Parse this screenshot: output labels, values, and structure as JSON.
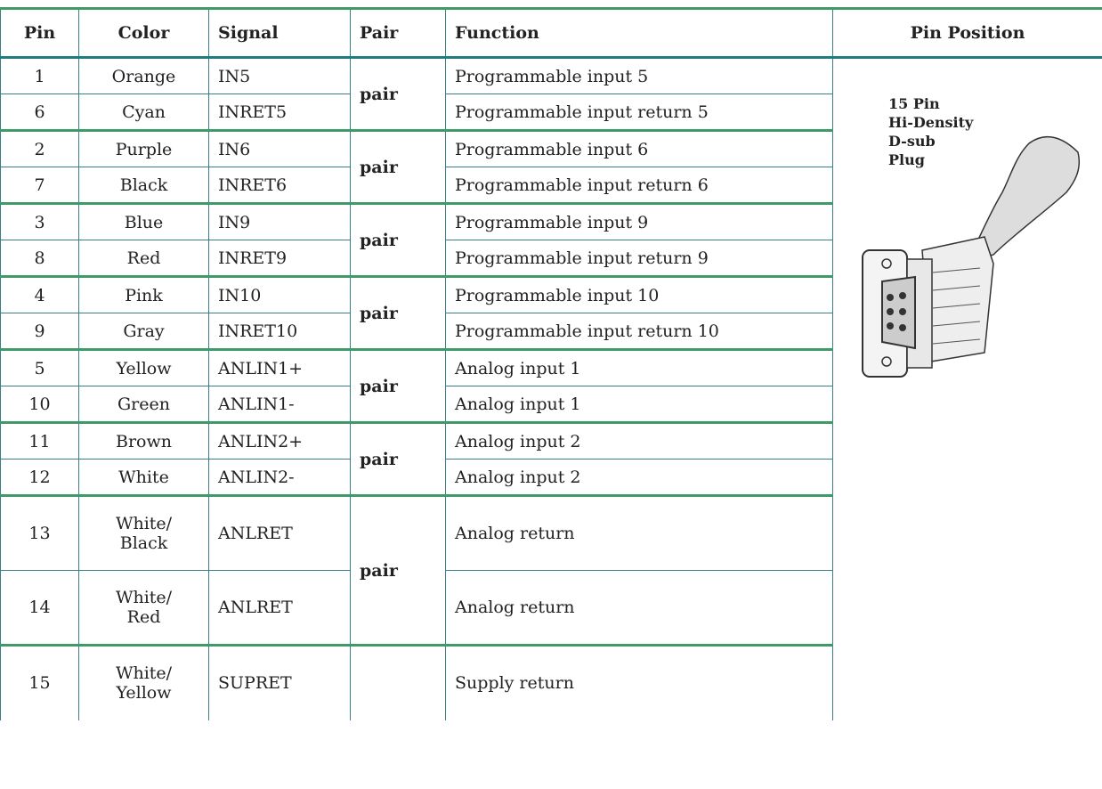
{
  "table": {
    "header": [
      "Pin",
      "Color",
      "Signal",
      "Pair",
      "Function",
      "Pin Position"
    ],
    "groups": [
      {
        "pair": "pair",
        "rows": [
          {
            "pin": "1",
            "color": "Orange",
            "signal": "IN5",
            "function": "Programmable input 5"
          },
          {
            "pin": "6",
            "color": "Cyan",
            "signal": "INRET5",
            "function": "Programmable input return 5"
          }
        ]
      },
      {
        "pair": "pair",
        "rows": [
          {
            "pin": "2",
            "color": "Purple",
            "signal": "IN6",
            "function": "Programmable input 6"
          },
          {
            "pin": "7",
            "color": "Black",
            "signal": "INRET6",
            "function": "Programmable input return 6"
          }
        ]
      },
      {
        "pair": "pair",
        "rows": [
          {
            "pin": "3",
            "color": "Blue",
            "signal": "IN9",
            "function": "Programmable input 9"
          },
          {
            "pin": "8",
            "color": "Red",
            "signal": "INRET9",
            "function": "Programmable input return 9"
          }
        ]
      },
      {
        "pair": "pair",
        "rows": [
          {
            "pin": "4",
            "color": "Pink",
            "signal": "IN10",
            "function": "Programmable input 10"
          },
          {
            "pin": "9",
            "color": "Gray",
            "signal": "INRET10",
            "function": "Programmable input return 10"
          }
        ]
      },
      {
        "pair": "pair",
        "rows": [
          {
            "pin": "5",
            "color": "Yellow",
            "signal": "ANLIN1+",
            "function": "Analog input 1"
          },
          {
            "pin": "10",
            "color": "Green",
            "signal": "ANLIN1-",
            "function": "Analog input 1"
          }
        ]
      },
      {
        "pair": "pair",
        "rows": [
          {
            "pin": "11",
            "color": "Brown",
            "signal": "ANLIN2+",
            "function": "Analog input 2"
          },
          {
            "pin": "12",
            "color": "White",
            "signal": "ANLIN2-",
            "function": "Analog input 2"
          }
        ]
      },
      {
        "pair": "pair",
        "rows": [
          {
            "pin": "13",
            "color": "White/\nBlack",
            "signal": "ANLRET",
            "function": "Analog return"
          },
          {
            "pin": "14",
            "color": "White/\nRed",
            "signal": "ANLRET",
            "function": "Analog return"
          }
        ]
      },
      {
        "rows": [
          {
            "pin": "15",
            "color": "White/\nYellow",
            "signal": "SUPRET",
            "function": "Supply return"
          }
        ]
      }
    ],
    "image_label": [
      "15 Pin",
      "Hi-Density",
      "D-sub",
      "Plug"
    ]
  }
}
